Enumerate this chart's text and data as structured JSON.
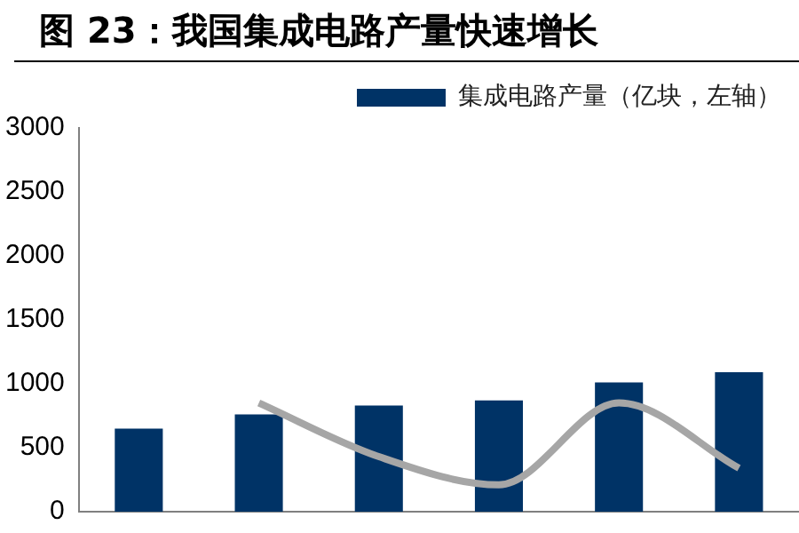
{
  "chart_data": {
    "type": "bar",
    "title": "图 23：我国集成电路产量快速增长",
    "categories": [
      null,
      null,
      null,
      null,
      null,
      null
    ],
    "series": [
      {
        "name": "集成电路产量（亿块，左轴）",
        "color": "#003366",
        "values": [
          650,
          760,
          830,
          870,
          1010,
          1090
        ]
      },
      {
        "type": "line",
        "color": "#a6a6a6",
        "values": [
          null,
          850,
          430,
          210,
          850,
          340
        ]
      }
    ],
    "ylim": [
      0,
      3000
    ],
    "yticks": [
      0,
      500,
      1000,
      1500,
      2000,
      2500,
      3000
    ],
    "grid": false,
    "legend": "top right",
    "tick_labels": "y"
  }
}
